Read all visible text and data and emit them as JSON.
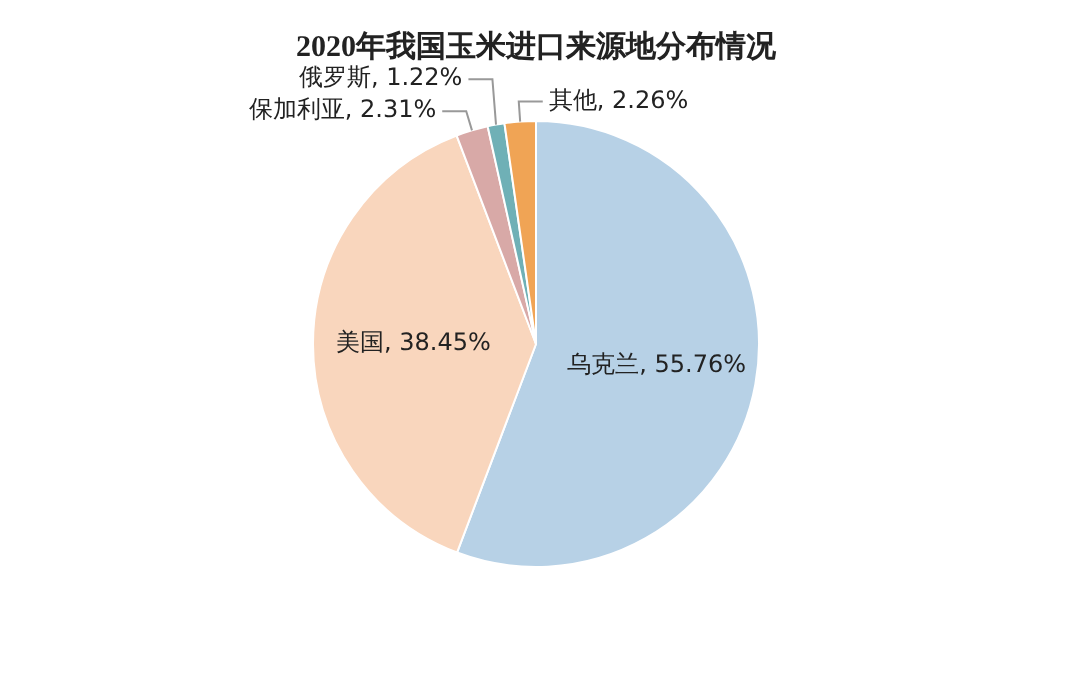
{
  "chart_data": {
    "type": "pie",
    "title": "2020年我国玉米进口来源地分布情况",
    "categories": [
      "乌克兰",
      "美国",
      "保加利亚",
      "俄罗斯",
      "其他"
    ],
    "values": [
      55.76,
      38.45,
      2.31,
      1.22,
      2.26
    ],
    "value_labels": [
      "55.76%",
      "38.45%",
      "2.31%",
      "1.22%",
      "2.26%"
    ],
    "colors": [
      "#b7d1e6",
      "#f9d6bd",
      "#d8a9a7",
      "#6fb0b6",
      "#f0a455"
    ],
    "legend": false
  }
}
